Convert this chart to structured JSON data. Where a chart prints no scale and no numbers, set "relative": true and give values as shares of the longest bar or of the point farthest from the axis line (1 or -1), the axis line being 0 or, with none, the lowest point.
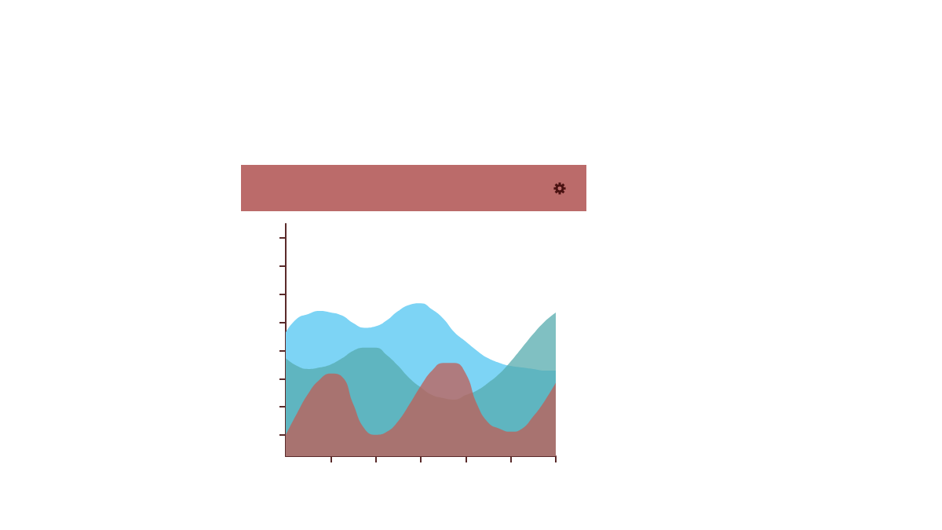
{
  "chart_data": {
    "type": "area",
    "relative": true,
    "marker": "none",
    "categories": [
      null,
      null,
      null,
      null,
      null,
      null,
      null,
      null,
      null,
      null,
      null,
      null,
      null,
      null,
      null,
      null,
      null,
      null,
      null,
      null,
      null,
      null,
      null,
      null,
      null
    ],
    "series": [
      {
        "color": "#7dd4f5",
        "values": [
          0.81,
          0.9,
          0.93,
          0.95,
          0.94,
          0.92,
          0.87,
          0.84,
          0.85,
          0.89,
          0.95,
          0.99,
          1.0,
          0.96,
          0.9,
          0.81,
          0.75,
          0.69,
          0.64,
          0.61,
          0.59,
          0.58,
          0.57,
          0.56,
          0.56
        ]
      },
      {
        "color": "#55abad",
        "values": [
          0.64,
          0.59,
          0.57,
          0.58,
          0.6,
          0.64,
          0.69,
          0.71,
          0.71,
          0.66,
          0.59,
          0.51,
          0.45,
          0.4,
          0.38,
          0.37,
          0.4,
          0.43,
          0.48,
          0.54,
          0.62,
          0.71,
          0.8,
          0.88,
          0.94
        ]
      },
      {
        "color": "#c05e56",
        "values": [
          0.14,
          0.28,
          0.41,
          0.5,
          0.54,
          0.52,
          0.34,
          0.18,
          0.14,
          0.16,
          0.23,
          0.34,
          0.46,
          0.56,
          0.61,
          0.61,
          0.54,
          0.34,
          0.22,
          0.18,
          0.16,
          0.18,
          0.26,
          0.36,
          0.48
        ]
      }
    ]
  }
}
